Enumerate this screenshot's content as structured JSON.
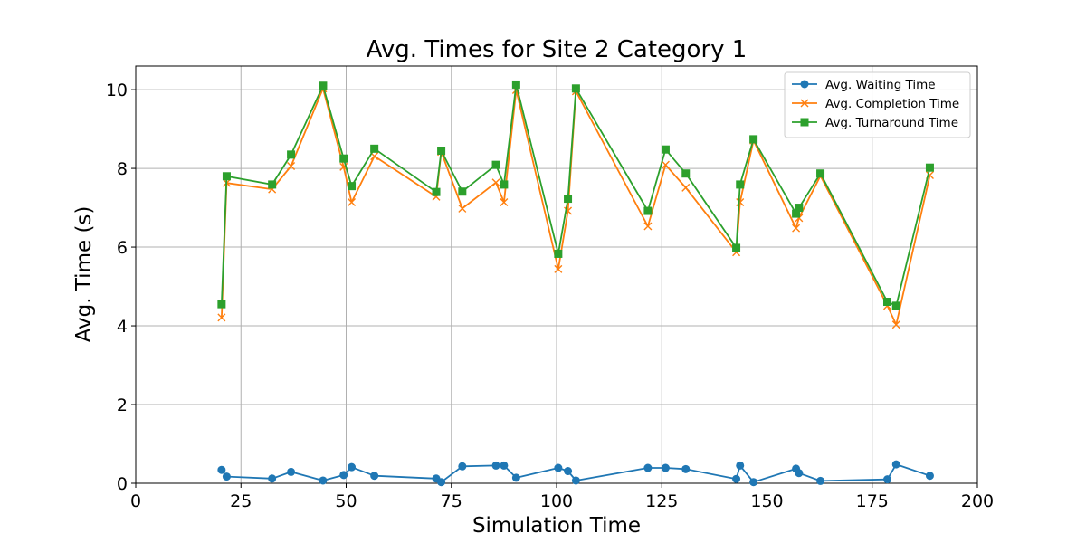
{
  "chart_data": {
    "type": "line",
    "title": "Avg. Times for Site 2 Category 1",
    "xlabel": "Simulation Time",
    "ylabel": "Avg. Time (s)",
    "xlim": [
      0,
      200
    ],
    "ylim": [
      0,
      10.6
    ],
    "xticks": [
      0,
      25,
      50,
      75,
      100,
      125,
      150,
      175,
      200
    ],
    "yticks": [
      0,
      2,
      4,
      6,
      8,
      10
    ],
    "grid": true,
    "legend_position": "top-right",
    "series": [
      {
        "name": "Avg. Waiting Time",
        "color": "#1f77b4",
        "marker": "circle",
        "x": [
          20.4,
          21.6,
          32.4,
          36.9,
          44.5,
          49.4,
          51.3,
          56.7,
          71.4,
          72.6,
          77.6,
          85.6,
          87.5,
          90.4,
          100.4,
          102.7,
          104.6,
          121.7,
          125.9,
          130.7,
          142.7,
          143.6,
          146.8,
          156.9,
          157.6,
          162.7,
          178.6,
          180.7,
          188.7
        ],
        "y": [
          0.34,
          0.17,
          0.12,
          0.29,
          0.07,
          0.21,
          0.41,
          0.19,
          0.12,
          0.03,
          0.43,
          0.45,
          0.45,
          0.14,
          0.39,
          0.31,
          0.07,
          0.39,
          0.39,
          0.36,
          0.11,
          0.45,
          0.03,
          0.37,
          0.26,
          0.06,
          0.1,
          0.48,
          0.19
        ]
      },
      {
        "name": "Avg. Completion Time",
        "color": "#ff7f0e",
        "marker": "x",
        "x": [
          20.4,
          21.6,
          32.4,
          36.9,
          44.5,
          49.4,
          51.3,
          56.7,
          71.4,
          72.6,
          77.6,
          85.6,
          87.5,
          90.4,
          100.4,
          102.7,
          104.6,
          121.7,
          125.9,
          130.7,
          142.7,
          143.6,
          146.8,
          156.9,
          157.6,
          162.7,
          178.6,
          180.7,
          188.7
        ],
        "y": [
          4.21,
          7.63,
          7.47,
          8.06,
          10.03,
          8.04,
          7.14,
          8.31,
          7.28,
          8.42,
          6.98,
          7.64,
          7.14,
          9.99,
          5.44,
          6.92,
          9.96,
          6.53,
          8.09,
          7.51,
          5.87,
          7.14,
          8.71,
          6.48,
          6.74,
          7.81,
          4.51,
          4.03,
          7.83
        ]
      },
      {
        "name": "Avg. Turnaround Time",
        "color": "#2ca02c",
        "marker": "square",
        "x": [
          20.4,
          21.6,
          32.4,
          36.9,
          44.5,
          49.4,
          51.3,
          56.7,
          71.4,
          72.6,
          77.6,
          85.6,
          87.5,
          90.4,
          100.4,
          102.7,
          104.6,
          121.7,
          125.9,
          130.7,
          142.7,
          143.6,
          146.8,
          156.9,
          157.6,
          162.7,
          178.6,
          180.7,
          188.7
        ],
        "y": [
          4.55,
          7.8,
          7.59,
          8.35,
          10.1,
          8.25,
          7.55,
          8.5,
          7.4,
          8.45,
          7.41,
          8.09,
          7.59,
          10.13,
          5.83,
          7.23,
          10.03,
          6.92,
          8.48,
          7.87,
          5.98,
          7.59,
          8.74,
          6.85,
          7.0,
          7.87,
          4.61,
          4.51,
          8.02
        ]
      }
    ]
  }
}
